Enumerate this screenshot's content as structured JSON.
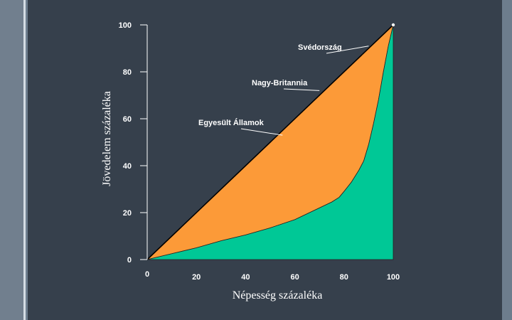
{
  "chart_data": {
    "type": "area",
    "title": "",
    "xlabel": "Népesség százaléka",
    "ylabel": "Jövedelem százaléka",
    "xlim": [
      0,
      100
    ],
    "ylim": [
      0,
      100
    ],
    "x_ticks": [
      "0",
      "20",
      "40",
      "60",
      "80",
      "100"
    ],
    "y_ticks": [
      "0",
      "20",
      "40",
      "60",
      "80",
      "100"
    ],
    "grid": false,
    "series": [
      {
        "name": "Egyesült Államok",
        "color": "#00c896",
        "x": [
          0,
          10,
          20,
          30,
          40,
          50,
          60,
          65,
          70,
          75,
          78,
          80,
          83,
          86,
          88,
          90,
          92,
          94,
          96,
          98,
          100
        ],
        "y": [
          0,
          2.5,
          5,
          8,
          10.5,
          13.5,
          17,
          19.5,
          22,
          24.5,
          26.5,
          29,
          33,
          38,
          42,
          49,
          58,
          68,
          80,
          91,
          100
        ]
      },
      {
        "name": "Nagy-Britannia",
        "color": "#fc9a38",
        "x": [
          0,
          100
        ],
        "y": [
          0,
          100
        ]
      },
      {
        "name": "Svédország",
        "color": "#000000",
        "x": [
          0,
          100
        ],
        "y": [
          0,
          100
        ]
      }
    ],
    "annotations": [
      {
        "text": "Svédország",
        "target": [
          90,
          91
        ]
      },
      {
        "text": "Nagy-Britannia",
        "target": [
          70,
          72
        ]
      },
      {
        "text": "Egyesült Államok",
        "target": [
          55,
          53
        ]
      }
    ]
  }
}
